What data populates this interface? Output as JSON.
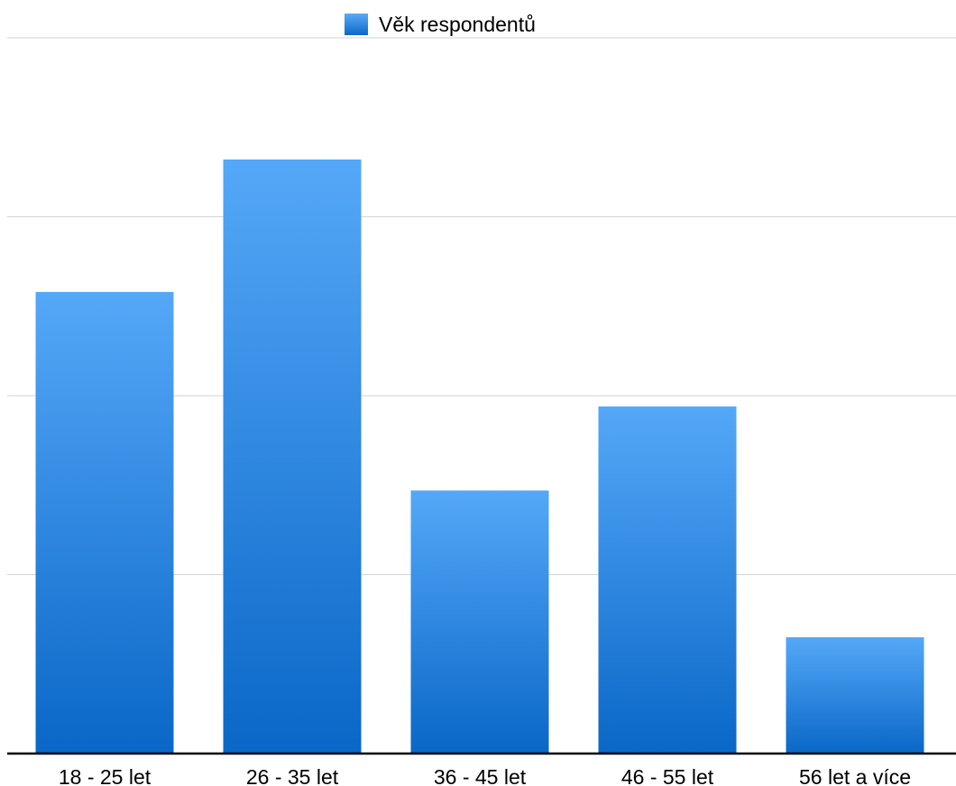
{
  "chart_data": {
    "type": "bar",
    "categories": [
      "18 - 25 let",
      "26 - 35 let",
      "36 - 45 let",
      "46 - 55 let",
      "56 let a více"
    ],
    "series": [
      {
        "name": "Věk respondentů",
        "values": [
          25.8,
          33.2,
          14.7,
          19.4,
          6.5
        ]
      }
    ],
    "ylim": [
      0,
      40
    ],
    "y_gridlines": [
      10,
      20,
      30,
      40
    ],
    "grid": true,
    "legend_position": "top-center",
    "colors": {
      "bar_top": "#55a8f8",
      "bar_bottom": "#0a67c7",
      "legend_swatch_top": "#5aaaf5",
      "legend_swatch_bottom": "#0b68c8",
      "grid": "#d3d3d3",
      "axis": "#000000"
    }
  }
}
